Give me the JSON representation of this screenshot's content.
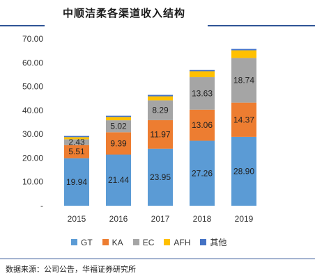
{
  "header": {
    "title": "中顺洁柔各渠道收入结构"
  },
  "footer": {
    "source": "数据来源：公司公告，华福证券研究所"
  },
  "colors": {
    "GT": "#5b9bd5",
    "KA": "#ed7d31",
    "EC": "#a5a5a5",
    "AFH": "#ffc000",
    "其他": "#4472c4"
  },
  "chart_data": {
    "type": "bar",
    "stacked": true,
    "title": "中顺洁柔各渠道收入结构",
    "xlabel": "",
    "ylabel": "",
    "categories": [
      "2015",
      "2016",
      "2017",
      "2018",
      "2019"
    ],
    "ylim": [
      0,
      70
    ],
    "yticks": [
      "-",
      "10.00",
      "20.00",
      "30.00",
      "40.00",
      "50.00",
      "60.00",
      "70.00"
    ],
    "grid": false,
    "legend_position": "bottom",
    "series": [
      {
        "name": "GT",
        "values": [
          19.94,
          21.44,
          23.95,
          27.26,
          28.9
        ],
        "labels": [
          "19.94",
          "21.44",
          "23.95",
          "27.26",
          "28.90"
        ]
      },
      {
        "name": "KA",
        "values": [
          5.51,
          9.39,
          11.97,
          13.06,
          14.37
        ],
        "labels": [
          "5.51",
          "9.39",
          "11.97",
          "13.06",
          "14.37"
        ]
      },
      {
        "name": "EC",
        "values": [
          2.43,
          5.02,
          8.29,
          13.63,
          18.74
        ],
        "labels": [
          "2.43",
          "5.02",
          "8.29",
          "13.63",
          "18.74"
        ]
      },
      {
        "name": "AFH",
        "values": [
          0.9,
          1.4,
          1.7,
          2.5,
          3.2
        ],
        "labels": [
          "",
          "",
          "",
          "",
          ""
        ]
      },
      {
        "name": "其他",
        "values": [
          0.5,
          0.5,
          0.6,
          0.5,
          0.6
        ],
        "labels": [
          "",
          "",
          "",
          "",
          ""
        ]
      }
    ]
  }
}
